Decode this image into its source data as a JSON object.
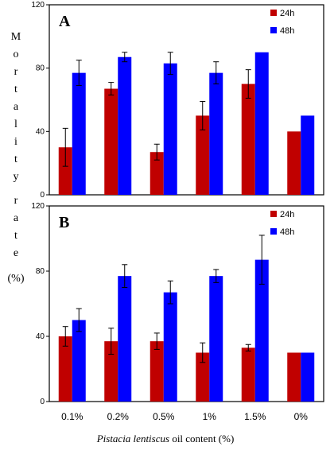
{
  "chart_data": {
    "type": "bar",
    "categories": [
      "0.1%",
      "0.2%",
      "0.5%",
      "1%",
      "1.5%",
      "0%"
    ],
    "xlabel_italic": "Pistacia lentiscus",
    "xlabel_rest": " oil content (%)",
    "ylabel_letters": [
      "M",
      "o",
      "r",
      "t",
      "a",
      "l",
      "i",
      "t",
      "y",
      "r",
      "a",
      "t",
      "e"
    ],
    "ylabel_unit": "(%)",
    "panels": [
      {
        "panel_label": "A",
        "ylim": [
          0,
          120
        ],
        "yticks": [
          0,
          40,
          80,
          120
        ],
        "series": [
          {
            "name": "24h",
            "color": "#c00000",
            "values": [
              30,
              67,
              27,
              50,
              70,
              40
            ],
            "errors": [
              12,
              4,
              5,
              9,
              9,
              null
            ]
          },
          {
            "name": "48h",
            "color": "#0000ff",
            "values": [
              77,
              87,
              83,
              77,
              90,
              50
            ],
            "errors": [
              8,
              3,
              7,
              7,
              null,
              null
            ]
          }
        ]
      },
      {
        "panel_label": "B",
        "ylim": [
          0,
          120
        ],
        "yticks": [
          0,
          40,
          80,
          120
        ],
        "series": [
          {
            "name": "24h",
            "color": "#c00000",
            "values": [
              40,
              37,
              37,
              30,
              33,
              30
            ],
            "errors": [
              6,
              8,
              5,
              6,
              2,
              null
            ]
          },
          {
            "name": "48h",
            "color": "#0000ff",
            "values": [
              50,
              77,
              67,
              77,
              87,
              30
            ],
            "errors": [
              7,
              7,
              7,
              4,
              15,
              null
            ]
          }
        ]
      }
    ]
  }
}
